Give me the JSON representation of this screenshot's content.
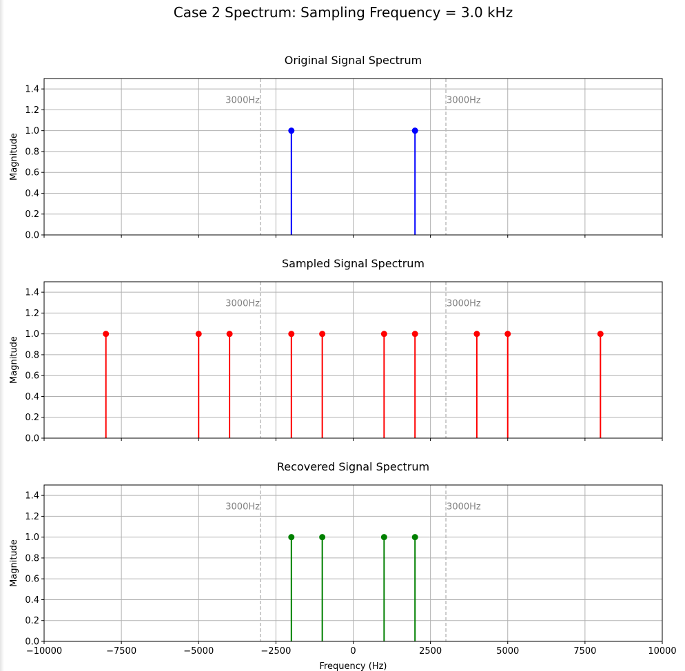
{
  "figure": {
    "title": "Case 2 Spectrum: Sampling Frequency = 3.0 kHz"
  },
  "colors": {
    "grid": "#b0b0b0",
    "marker_line": "#bbbbbb",
    "marker_text": "#808080",
    "original": "#0000ff",
    "sampled": "#ff0000",
    "recovered": "#008000"
  },
  "chart_data": [
    {
      "type": "stem",
      "title": "Original Signal Spectrum",
      "xlabel": "",
      "ylabel": "Magnitude",
      "xlim": [
        -10000,
        10000
      ],
      "ylim": [
        0,
        1.5
      ],
      "xticks": [
        -10000,
        -7500,
        -5000,
        -2500,
        0,
        2500,
        5000,
        7500,
        10000
      ],
      "xtick_labels": [],
      "yticks": [
        "0.0",
        "0.2",
        "0.4",
        "0.6",
        "0.8",
        "1.0",
        "1.2",
        "1.4"
      ],
      "grid": true,
      "color": "#0000ff",
      "x": [
        -2000,
        2000
      ],
      "y": [
        1.0,
        1.0
      ],
      "vlines": [
        {
          "x": -3000,
          "label": "3000Hz"
        },
        {
          "x": 3000,
          "label": "3000Hz"
        }
      ]
    },
    {
      "type": "stem",
      "title": "Sampled Signal Spectrum",
      "xlabel": "",
      "ylabel": "Magnitude",
      "xlim": [
        -10000,
        10000
      ],
      "ylim": [
        0,
        1.5
      ],
      "xticks": [
        -10000,
        -7500,
        -5000,
        -2500,
        0,
        2500,
        5000,
        7500,
        10000
      ],
      "xtick_labels": [],
      "yticks": [
        "0.0",
        "0.2",
        "0.4",
        "0.6",
        "0.8",
        "1.0",
        "1.2",
        "1.4"
      ],
      "grid": true,
      "color": "#ff0000",
      "x": [
        -8000,
        -5000,
        -4000,
        -2000,
        -1000,
        1000,
        2000,
        4000,
        5000,
        8000
      ],
      "y": [
        1.0,
        1.0,
        1.0,
        1.0,
        1.0,
        1.0,
        1.0,
        1.0,
        1.0,
        1.0
      ],
      "vlines": [
        {
          "x": -3000,
          "label": "3000Hz"
        },
        {
          "x": 3000,
          "label": "3000Hz"
        }
      ]
    },
    {
      "type": "stem",
      "title": "Recovered Signal Spectrum",
      "xlabel": "Frequency (Hz)",
      "ylabel": "Magnitude",
      "xlim": [
        -10000,
        10000
      ],
      "ylim": [
        0,
        1.5
      ],
      "xticks": [
        -10000,
        -7500,
        -5000,
        -2500,
        0,
        2500,
        5000,
        7500,
        10000
      ],
      "xtick_labels": [
        "−10000",
        "−7500",
        "−5000",
        "−2500",
        "0",
        "2500",
        "5000",
        "7500",
        "10000"
      ],
      "yticks": [
        "0.0",
        "0.2",
        "0.4",
        "0.6",
        "0.8",
        "1.0",
        "1.2",
        "1.4"
      ],
      "grid": true,
      "color": "#008000",
      "x": [
        -2000,
        -1000,
        1000,
        2000
      ],
      "y": [
        1.0,
        1.0,
        1.0,
        1.0
      ],
      "vlines": [
        {
          "x": -3000,
          "label": "3000Hz"
        },
        {
          "x": 3000,
          "label": "3000Hz"
        }
      ]
    }
  ]
}
